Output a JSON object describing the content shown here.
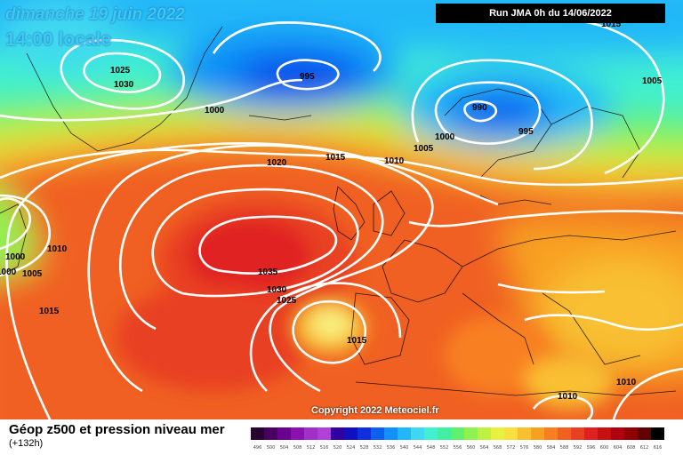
{
  "header": {
    "date": "dimanche 19 juin 2022",
    "time": "14:00 locale",
    "run": "Run JMA 0h du 14/06/2022"
  },
  "copyright": "Copyright 2022 Meteociel.fr",
  "legend": {
    "title": "Géop z500 et pression niveau mer",
    "subtitle": "(+132h)",
    "ticks": [
      "496",
      "500",
      "504",
      "508",
      "512",
      "516",
      "520",
      "524",
      "528",
      "532",
      "536",
      "540",
      "544",
      "548",
      "552",
      "556",
      "560",
      "564",
      "568",
      "572",
      "576",
      "580",
      "584",
      "588",
      "592",
      "596",
      "600",
      "604",
      "608",
      "612",
      "616"
    ],
    "colors": [
      "#2a0030",
      "#4a0060",
      "#6a0090",
      "#8a10b0",
      "#a030c8",
      "#b040d8",
      "#3000a0",
      "#1010c0",
      "#1030e0",
      "#1060f0",
      "#1090f8",
      "#20b8f8",
      "#40d8f0",
      "#40f0d0",
      "#40f0a0",
      "#60f070",
      "#90f050",
      "#c0f040",
      "#e8f040",
      "#f8e040",
      "#f8c030",
      "#f8a020",
      "#f88020",
      "#f06020",
      "#e84020",
      "#e02020",
      "#c81010",
      "#b00010",
      "#900000",
      "#600000",
      "#000000"
    ]
  },
  "pressure_labels": [
    "1025",
    "1030",
    "1000",
    "995",
    "990",
    "1005",
    "1000",
    "995",
    "1005",
    "1020",
    "1015",
    "1010",
    "1010",
    "1000",
    "1005",
    "1000",
    "1015",
    "1035",
    "1030",
    "1025",
    "1015",
    "1010",
    "1010",
    "1015"
  ]
}
